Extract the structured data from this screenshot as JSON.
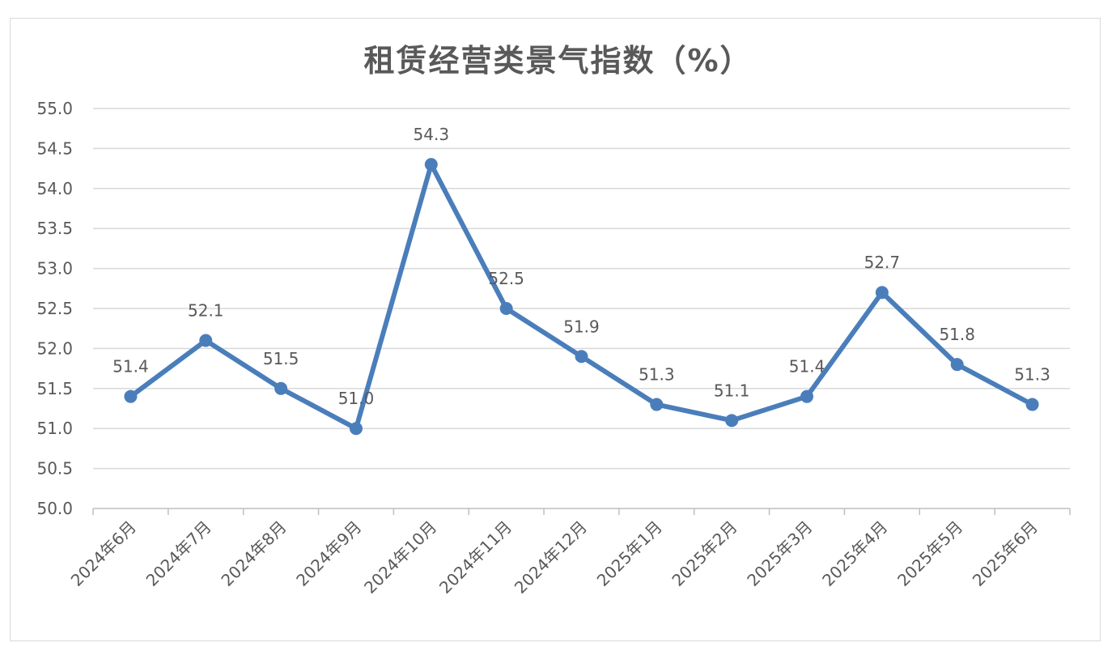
{
  "chart_data": {
    "type": "line",
    "title": "租赁经营类景气指数（%）",
    "xlabel": "",
    "ylabel": "",
    "categories": [
      "2024年6月",
      "2024年7月",
      "2024年8月",
      "2024年9月",
      "2024年10月",
      "2024年11月",
      "2024年12月",
      "2025年1月",
      "2025年2月",
      "2025年3月",
      "2025年4月",
      "2025年5月",
      "2025年6月"
    ],
    "series": [
      {
        "values": [
          51.4,
          52.1,
          51.5,
          51.0,
          54.3,
          52.5,
          51.9,
          51.3,
          51.1,
          51.4,
          52.7,
          51.8,
          51.3
        ]
      }
    ],
    "ylim": [
      50.0,
      55.0
    ],
    "yticks": [
      "50.0",
      "50.5",
      "51.0",
      "51.5",
      "52.0",
      "52.5",
      "53.0",
      "53.5",
      "54.0",
      "54.5",
      "55.0"
    ],
    "data_labels": [
      "51.4",
      "52.1",
      "51.5",
      "51.0",
      "54.3",
      "52.5",
      "51.9",
      "51.3",
      "51.1",
      "51.4",
      "52.7",
      "51.8",
      "51.3"
    ],
    "grid": true,
    "legend": "none",
    "colors": {
      "line": "#4a7ebb",
      "grid": "#d9d9d9",
      "axis": "#bfbfbf",
      "text": "#595959"
    }
  }
}
